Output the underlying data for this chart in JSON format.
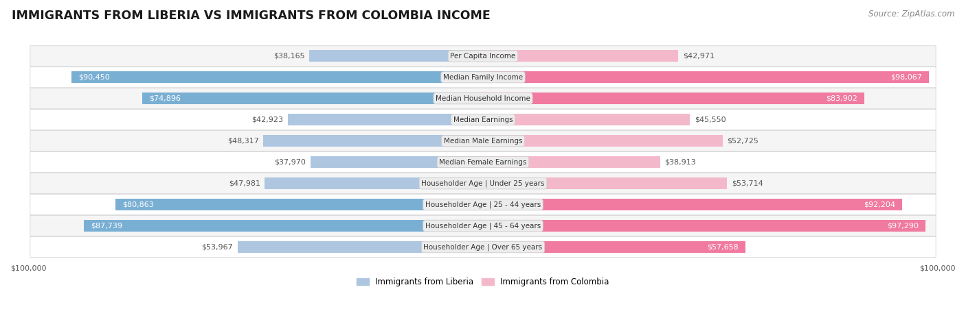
{
  "title": "IMMIGRANTS FROM LIBERIA VS IMMIGRANTS FROM COLOMBIA INCOME",
  "source": "Source: ZipAtlas.com",
  "categories": [
    "Per Capita Income",
    "Median Family Income",
    "Median Household Income",
    "Median Earnings",
    "Median Male Earnings",
    "Median Female Earnings",
    "Householder Age | Under 25 years",
    "Householder Age | 25 - 44 years",
    "Householder Age | 45 - 64 years",
    "Householder Age | Over 65 years"
  ],
  "liberia_values": [
    38165,
    90450,
    74896,
    42923,
    48317,
    37970,
    47981,
    80863,
    87739,
    53967
  ],
  "colombia_values": [
    42971,
    98067,
    83902,
    45550,
    52725,
    38913,
    53714,
    92204,
    97290,
    57658
  ],
  "liberia_color_light": "#aec6e0",
  "liberia_color_dark": "#7aafd4",
  "colombia_color_light": "#f4b8cb",
  "colombia_color_dark": "#f07aA0",
  "liberia_label": "Immigrants from Liberia",
  "colombia_label": "Immigrants from Colombia",
  "max_value": 100000,
  "label_color_dark": "#555555",
  "label_color_white": "#ffffff",
  "bg_row_light": "#f5f5f5",
  "bg_row_dark": "#e8e8e8",
  "row_border_color": "#d0d0d0",
  "center_label_bg": "#e0e0e0",
  "center_label_color": "#333333",
  "title_fontsize": 12.5,
  "source_fontsize": 8.5,
  "bar_label_fontsize": 8,
  "category_fontsize": 7.5,
  "legend_fontsize": 8.5,
  "axis_label_fontsize": 8,
  "inside_threshold": 55000
}
